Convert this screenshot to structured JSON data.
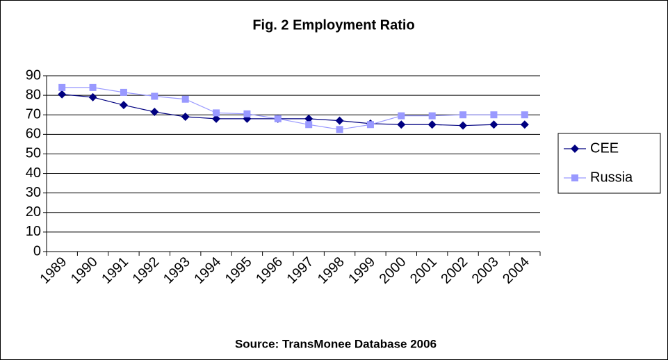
{
  "chart_data": {
    "type": "line",
    "title": "Fig. 2 Employment Ratio",
    "source": "Source: TransMonee Database 2006",
    "categories": [
      "1989",
      "1990",
      "1991",
      "1992",
      "1993",
      "1994",
      "1995",
      "1996",
      "1997",
      "1998",
      "1999",
      "2000",
      "2001",
      "2002",
      "2003",
      "2004"
    ],
    "series": [
      {
        "name": "CEE",
        "color": "#000080",
        "marker": "diamond",
        "values": [
          80.5,
          79,
          75,
          71.5,
          69,
          68,
          68,
          68,
          68,
          67,
          65.5,
          65,
          65,
          64.5,
          65,
          65
        ]
      },
      {
        "name": "Russia",
        "color": "#9999ff",
        "marker": "square",
        "values": [
          84,
          84,
          81.5,
          79.5,
          78,
          71,
          70.5,
          68,
          65,
          62.5,
          65,
          69.5,
          69.5,
          70,
          70,
          70
        ]
      }
    ],
    "ylim": [
      0,
      90
    ],
    "yticks": [
      0,
      10,
      20,
      30,
      40,
      50,
      60,
      70,
      80,
      90
    ],
    "grid": true,
    "legend": "right"
  }
}
